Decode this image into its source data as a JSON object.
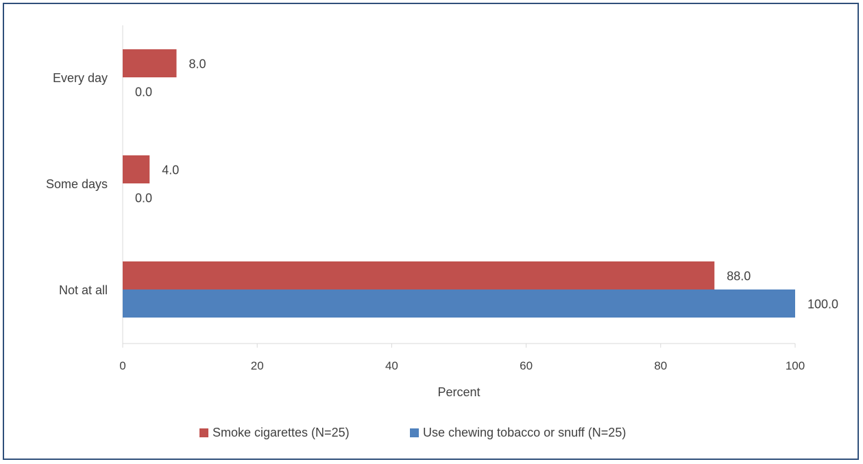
{
  "chart_data": {
    "type": "bar",
    "orientation": "horizontal",
    "categories": [
      "Every day",
      "Some days",
      "Not at all"
    ],
    "series": [
      {
        "name": "Smoke cigarettes (N=25)",
        "values": [
          8.0,
          4.0,
          88.0
        ],
        "color": "#c0504d"
      },
      {
        "name": "Use chewing tobacco or snuff (N=25)",
        "values": [
          0.0,
          0.0,
          100.0
        ],
        "color": "#4f81bd"
      }
    ],
    "data_labels": [
      [
        "8.0",
        "4.0",
        "88.0"
      ],
      [
        "0.0",
        "0.0",
        "100.0"
      ]
    ],
    "xlabel": "Percent",
    "ylabel": "",
    "xlim": [
      0,
      100
    ],
    "xticks": [
      0,
      20,
      40,
      60,
      80,
      100
    ],
    "xtick_labels": [
      "0",
      "20",
      "40",
      "60",
      "80",
      "100"
    ],
    "grid": false,
    "legend_position": "bottom"
  }
}
